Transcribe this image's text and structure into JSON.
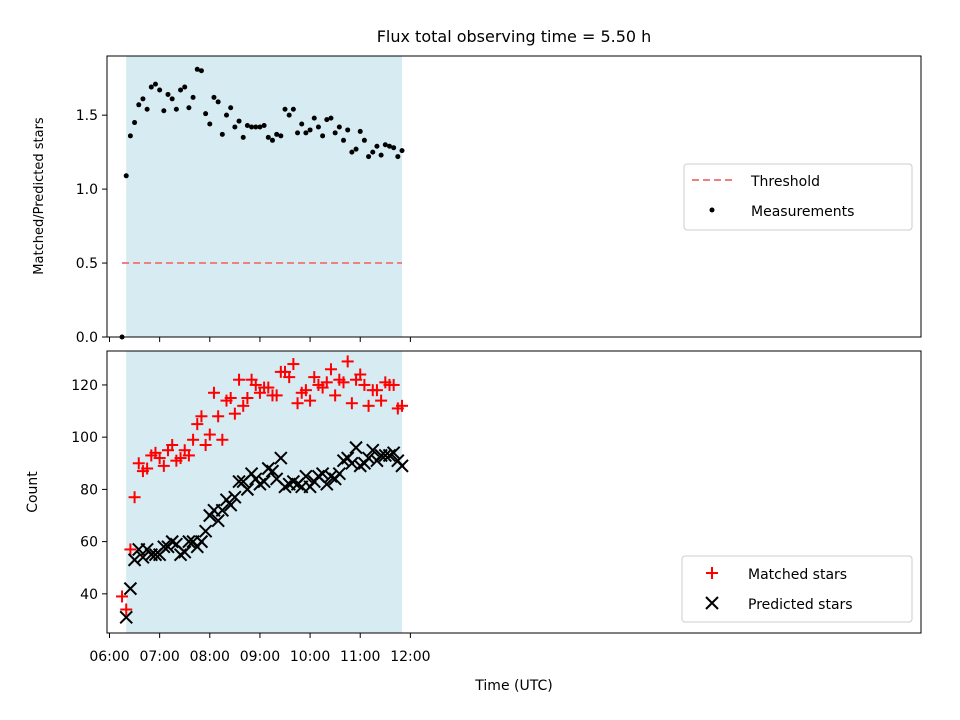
{
  "chart_data": [
    {
      "type": "scatter",
      "title": "Flux total observing time = 5.50 h",
      "ylabel": "Matched/Predicted stars",
      "xlim_minutes": [
        357,
        1331
      ],
      "ylim": [
        0,
        1.9
      ],
      "yticks": [
        "0.0",
        "0.5",
        "1.0",
        "1.5"
      ],
      "ytick_values": [
        0,
        0.5,
        1.0,
        1.5
      ],
      "shaded_span": [
        "06:20",
        "11:50"
      ],
      "shade_color": "#add8e6",
      "threshold": {
        "name": "Threshold",
        "value": 0.5,
        "x_start": "06:15",
        "x_end": "11:50",
        "color": "#f08080"
      },
      "legend": {
        "placement": "center-right",
        "entries": [
          "Threshold",
          "Measurements"
        ]
      },
      "series": [
        {
          "name": "Measurements",
          "color": "#000000",
          "x": [
            "06:15",
            "06:20",
            "06:25",
            "06:30",
            "06:35",
            "06:40",
            "06:45",
            "06:50",
            "06:55",
            "07:00",
            "07:05",
            "07:10",
            "07:15",
            "07:20",
            "07:25",
            "07:30",
            "07:35",
            "07:40",
            "07:45",
            "07:50",
            "07:55",
            "08:00",
            "08:05",
            "08:10",
            "08:15",
            "08:20",
            "08:25",
            "08:30",
            "08:35",
            "08:40",
            "08:45",
            "08:50",
            "08:55",
            "09:00",
            "09:05",
            "09:10",
            "09:15",
            "09:20",
            "09:25",
            "09:30",
            "09:35",
            "09:40",
            "09:45",
            "09:50",
            "09:55",
            "10:00",
            "10:05",
            "10:10",
            "10:15",
            "10:20",
            "10:25",
            "10:30",
            "10:35",
            "10:40",
            "10:45",
            "10:50",
            "10:55",
            "11:00",
            "11:05",
            "11:10",
            "11:15",
            "11:20",
            "11:25",
            "11:30",
            "11:35",
            "11:40",
            "11:45",
            "11:50"
          ],
          "y": [
            0.0,
            1.09,
            1.36,
            1.45,
            1.57,
            1.61,
            1.54,
            1.69,
            1.71,
            1.67,
            1.53,
            1.64,
            1.61,
            1.54,
            1.67,
            1.69,
            1.55,
            1.62,
            1.81,
            1.8,
            1.51,
            1.44,
            1.62,
            1.59,
            1.37,
            1.5,
            1.55,
            1.42,
            1.46,
            1.35,
            1.43,
            1.42,
            1.42,
            1.42,
            1.43,
            1.35,
            1.33,
            1.37,
            1.36,
            1.54,
            1.5,
            1.54,
            1.38,
            1.44,
            1.38,
            1.4,
            1.48,
            1.42,
            1.36,
            1.47,
            1.48,
            1.38,
            1.42,
            1.33,
            1.4,
            1.25,
            1.27,
            1.39,
            1.33,
            1.22,
            1.25,
            1.29,
            1.23,
            1.3,
            1.29,
            1.28,
            1.22,
            1.26
          ]
        }
      ]
    },
    {
      "type": "scatter",
      "xlabel": "Time (UTC)",
      "ylabel": "Count",
      "xlim_minutes": [
        357,
        1331
      ],
      "ylim": [
        25,
        133
      ],
      "yticks": [
        "40",
        "60",
        "80",
        "100",
        "120"
      ],
      "ytick_values": [
        40,
        60,
        80,
        100,
        120
      ],
      "xticks": [
        "06:00",
        "07:00",
        "08:00",
        "09:00",
        "10:00",
        "11:00",
        "12:00"
      ],
      "xtick_minutes": [
        360,
        420,
        480,
        540,
        600,
        660,
        720
      ],
      "shaded_span": [
        "06:20",
        "11:50"
      ],
      "shade_color": "#add8e6",
      "legend": {
        "placement": "bottom-right",
        "entries": [
          "Matched stars",
          "Predicted stars"
        ]
      },
      "x": [
        "06:15",
        "06:20",
        "06:25",
        "06:30",
        "06:35",
        "06:40",
        "06:45",
        "06:50",
        "06:55",
        "07:00",
        "07:05",
        "07:10",
        "07:15",
        "07:20",
        "07:25",
        "07:30",
        "07:35",
        "07:40",
        "07:45",
        "07:50",
        "07:55",
        "08:00",
        "08:05",
        "08:10",
        "08:15",
        "08:20",
        "08:25",
        "08:30",
        "08:35",
        "08:40",
        "08:45",
        "08:50",
        "08:55",
        "09:00",
        "09:05",
        "09:10",
        "09:15",
        "09:20",
        "09:25",
        "09:30",
        "09:35",
        "09:40",
        "09:45",
        "09:50",
        "09:55",
        "10:00",
        "10:05",
        "10:10",
        "10:15",
        "10:20",
        "10:25",
        "10:30",
        "10:35",
        "10:40",
        "10:45",
        "10:50",
        "10:55",
        "11:00",
        "11:05",
        "11:10",
        "11:15",
        "11:20",
        "11:25",
        "11:30",
        "11:35",
        "11:40",
        "11:45",
        "11:50"
      ],
      "series": [
        {
          "name": "Matched stars",
          "marker": "plus",
          "color": "#ff0000",
          "values": [
            39,
            34,
            57,
            77,
            90,
            87,
            88,
            93,
            94,
            92,
            89,
            95,
            97,
            91,
            92,
            95,
            93,
            99,
            105,
            108,
            97,
            101,
            117,
            108,
            99,
            114,
            115,
            109,
            122,
            112,
            115,
            122,
            120,
            117,
            119,
            119,
            116,
            116,
            125,
            125,
            123,
            128,
            113,
            117,
            118,
            114,
            123,
            120,
            119,
            121,
            126,
            116,
            122,
            121,
            129,
            113,
            122,
            124,
            120,
            112,
            118,
            118,
            114,
            121,
            120,
            120,
            111,
            112
          ]
        },
        {
          "name": "Predicted stars",
          "marker": "x",
          "color": "#000000",
          "values": [
            null,
            31,
            42,
            53,
            57,
            54,
            57,
            55,
            55,
            55,
            58,
            58,
            60,
            59,
            55,
            56,
            60,
            60,
            58,
            60,
            64,
            70,
            72,
            68,
            72,
            76,
            74,
            77,
            83,
            83,
            80,
            86,
            84,
            82,
            83,
            88,
            87,
            84,
            92,
            81,
            82,
            83,
            82,
            81,
            85,
            81,
            83,
            85,
            86,
            82,
            85,
            84,
            86,
            91,
            92,
            90,
            96,
            89,
            90,
            92,
            95,
            91,
            93,
            93,
            93,
            94,
            91,
            89
          ]
        }
      ]
    }
  ]
}
